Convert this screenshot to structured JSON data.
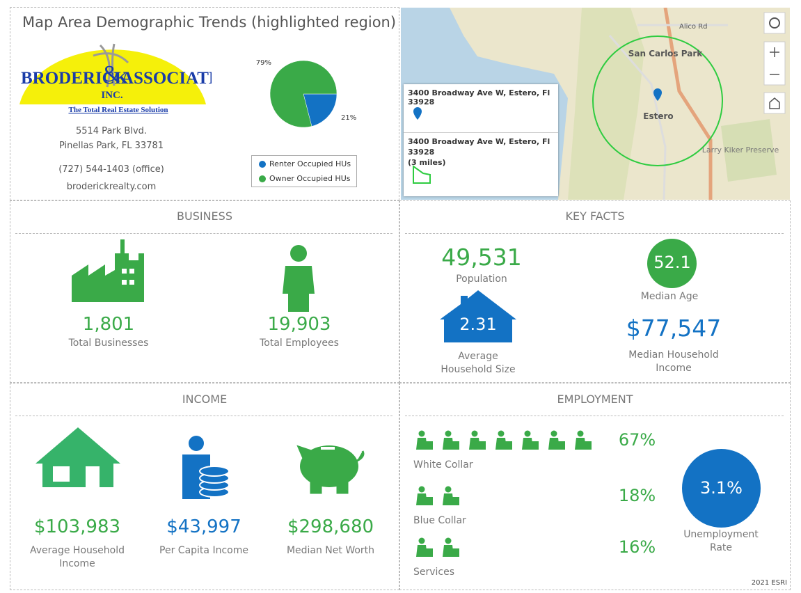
{
  "header": {
    "title": "Map Area Demographic Trends (highlighted region)"
  },
  "logo": {
    "name_1": "BRODERICK",
    "amp": "&",
    "name_2": "ASSOCIATES",
    "inc": "INC.",
    "tagline": "The Total Real Estate Solution"
  },
  "contact": [
    "5514 Park Blvd.",
    "Pinellas Park, FL 33781",
    "(727) 544-1403 (office)",
    "broderickrealty.com"
  ],
  "chart_data": {
    "type": "pie",
    "categories": [
      "Renter Occupied HUs",
      "Owner Occupied HUs"
    ],
    "values": [
      21,
      79
    ],
    "value_labels": [
      "21%",
      "79%"
    ],
    "colors": [
      "#1372c4",
      "#3aaa48"
    ]
  },
  "map": {
    "labels": [
      "Alico Rd",
      "San Carlos Park",
      "Estero",
      "Larry Kiker Preserve"
    ],
    "popups": [
      {
        "title": "3400 Broadway Ave W, Estero, Fl 33928"
      },
      {
        "title": "3400 Broadway Ave W, Estero, Fl 33928",
        "subtitle": "(3 miles)"
      }
    ]
  },
  "business": {
    "title": "BUSINESS",
    "items": [
      {
        "value": "1,801",
        "label": "Total Businesses"
      },
      {
        "value": "19,903",
        "label": "Total Employees"
      }
    ]
  },
  "key_facts": {
    "title": "KEY FACTS",
    "population": {
      "value": "49,531",
      "label": "Population"
    },
    "median_age": {
      "value": "52.1",
      "label": "Median Age"
    },
    "household_size": {
      "value": "2.31",
      "label": "Average Household Size"
    },
    "median_income": {
      "value": "$77,547",
      "label": "Median Household Income"
    }
  },
  "income": {
    "title": "INCOME",
    "items": [
      {
        "value": "$103,983",
        "label": "Average Household Income"
      },
      {
        "value": "$43,997",
        "label": "Per Capita Income"
      },
      {
        "value": "$298,680",
        "label": "Median Net Worth"
      }
    ]
  },
  "employment": {
    "title": "EMPLOYMENT",
    "rows": [
      {
        "value": "67%",
        "label": "White Collar"
      },
      {
        "value": "18%",
        "label": "Blue Collar"
      },
      {
        "value": "16%",
        "label": "Services"
      }
    ],
    "unemployment": {
      "value": "3.1%",
      "label": "Unemployment Rate"
    }
  },
  "footer": "2021 ESRI"
}
